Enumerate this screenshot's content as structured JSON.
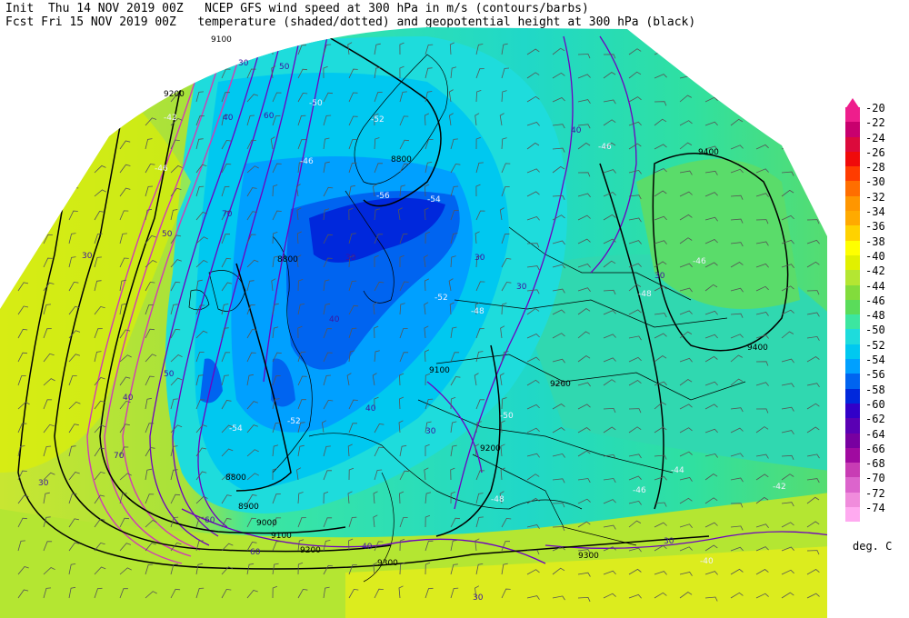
{
  "header": {
    "init_label": "Init  Thu 14 NOV 2019 00Z",
    "fcst_label": "Fcst Fri 15 NOV 2019 00Z",
    "title_line1": "NCEP GFS wind speed at 300 hPa in m/s (contours/barbs)",
    "title_line2": "temperature (shaded/dotted) and geopotential height at 300 hPa (black)"
  },
  "colorbar": {
    "units": "deg. C",
    "levels": [
      "-20",
      "-22",
      "-24",
      "-26",
      "-28",
      "-30",
      "-32",
      "-34",
      "-36",
      "-38",
      "-40",
      "-42",
      "-44",
      "-46",
      "-48",
      "-50",
      "-52",
      "-54",
      "-56",
      "-58",
      "-60",
      "-62",
      "-64",
      "-66",
      "-68",
      "-70",
      "-72",
      "-74"
    ],
    "colors": [
      "#ee1e8c",
      "#c8006e",
      "#dc0a3c",
      "#f00a0a",
      "#ff3c00",
      "#ff6e00",
      "#ff9600",
      "#ffaa00",
      "#ffd200",
      "#ffff00",
      "#e1f000",
      "#b4e632",
      "#82dc3c",
      "#5adc5a",
      "#3ce6a0",
      "#1edcdc",
      "#00c8f0",
      "#00a0ff",
      "#0064f0",
      "#0028dc",
      "#3200c8",
      "#5a00b4",
      "#7800a0",
      "#a00aa0",
      "#c83cb4",
      "#dc64cc",
      "#f08cdc",
      "#ffaaf0"
    ]
  },
  "map": {
    "height_labels": [
      "9100",
      "9200",
      "8800",
      "8800",
      "9400",
      "9400",
      "9100",
      "9200",
      "9200",
      "8800",
      "8900",
      "9000",
      "9100",
      "9200",
      "9300",
      "9300"
    ],
    "wind_labels": [
      "30",
      "50",
      "40",
      "60",
      "70",
      "50",
      "30",
      "40",
      "30",
      "60",
      "70",
      "30",
      "40",
      "30",
      "40",
      "40",
      "30",
      "30",
      "30",
      "30",
      "40",
      "50",
      "60",
      "30"
    ],
    "temp_labels": [
      "-42",
      "-46",
      "-52",
      "-56",
      "-46",
      "-50",
      "-54",
      "-52",
      "-48",
      "-46",
      "-48",
      "-46",
      "-44",
      "-42",
      "-40",
      "-46",
      "-50",
      "-48",
      "-52",
      "-54"
    ]
  }
}
